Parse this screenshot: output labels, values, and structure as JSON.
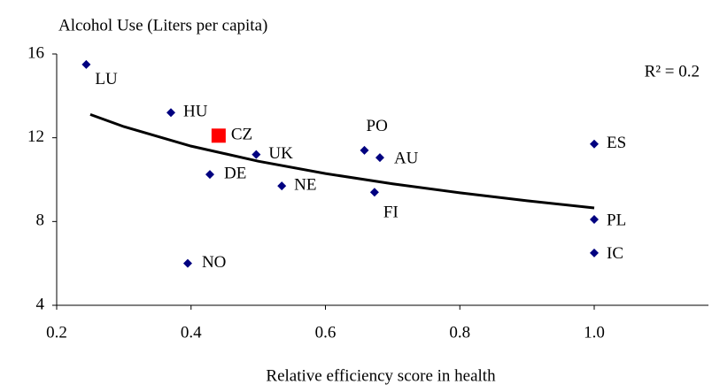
{
  "chart_data": {
    "type": "scatter",
    "y_axis_label": "Alcohol Use (Liters per capita)",
    "x_axis_label": "Relative efficiency score in health",
    "annotation": "R² = 0.2",
    "point_labels": [
      "LU",
      "HU",
      "CZ",
      "UK",
      "DE",
      "NE",
      "NO",
      "PO",
      "AU",
      "FI",
      "ES",
      "PL",
      "IC"
    ],
    "x": [
      0.244,
      0.37,
      0.441,
      0.497,
      0.428,
      0.535,
      0.395,
      0.658,
      0.681,
      0.673,
      1.0,
      1.0,
      1.0
    ],
    "values": [
      15.5,
      13.2,
      12.1,
      11.2,
      10.25,
      9.7,
      6.0,
      11.4,
      11.05,
      9.4,
      11.7,
      8.1,
      6.5
    ],
    "colors": [
      "#000080",
      "#000080",
      "#ff0000",
      "#000080",
      "#000080",
      "#000080",
      "#000080",
      "#000080",
      "#000080",
      "#000080",
      "#000080",
      "#000080",
      "#000080"
    ],
    "shapes": [
      "diamond",
      "diamond",
      "square",
      "diamond",
      "diamond",
      "diamond",
      "diamond",
      "diamond",
      "diamond",
      "diamond",
      "diamond",
      "diamond",
      "diamond"
    ],
    "trendline": {
      "color": "#000000",
      "x": [
        0.25,
        0.3,
        0.4,
        0.5,
        0.6,
        0.7,
        0.8,
        0.9,
        1.0
      ],
      "values": [
        13.11,
        12.53,
        11.6,
        10.88,
        10.29,
        9.8,
        9.37,
        8.99,
        8.65
      ]
    },
    "xlim": [
      0.2,
      1.17
    ],
    "xticks": [
      0.2,
      0.4,
      0.6,
      0.8,
      {
        "value": 1,
        "label": "1.0"
      }
    ],
    "ylim": [
      4,
      16
    ],
    "yticks": [
      4,
      8,
      12,
      16
    ],
    "grid": false
  }
}
